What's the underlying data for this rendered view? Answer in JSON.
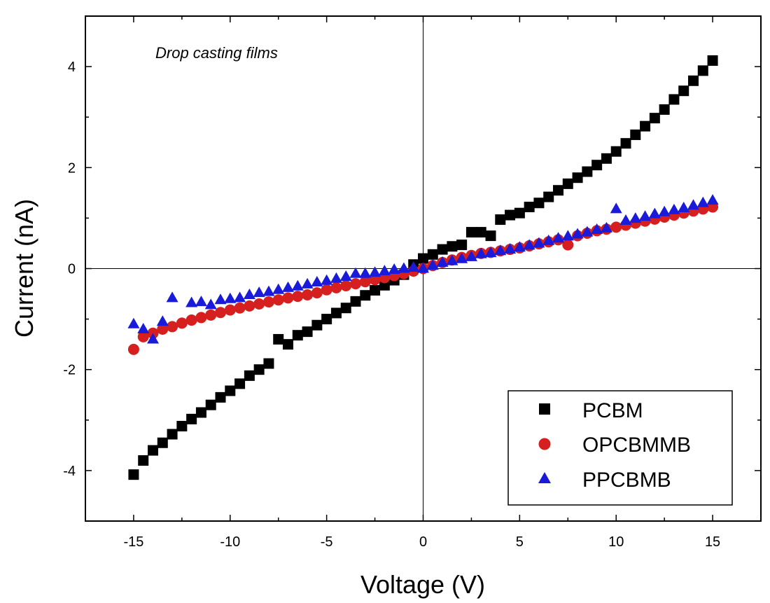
{
  "chart_data": {
    "type": "scatter",
    "title": "",
    "annotation": "Drop casting films",
    "xlabel": "Voltage (V)",
    "ylabel": "Current (nA)",
    "xlim": [
      -17.5,
      17.5
    ],
    "ylim": [
      -5,
      5
    ],
    "xticks": [
      -15,
      -10,
      -5,
      0,
      5,
      10,
      15
    ],
    "yticks": [
      -4,
      -2,
      0,
      2,
      4
    ],
    "xtick_labels": [
      "-15",
      "-10",
      "-5",
      "0",
      "5",
      "10",
      "15"
    ],
    "ytick_labels": [
      "-4",
      "-2",
      "0",
      "2",
      "4"
    ],
    "grid": false,
    "zero_lines": true,
    "legend_position": "bottom-right",
    "series": [
      {
        "name": "PCBM",
        "marker": "square",
        "color": "#000000",
        "x": [
          -15,
          -14.5,
          -14,
          -13.5,
          -13,
          -12.5,
          -12,
          -11.5,
          -11,
          -10.5,
          -10,
          -9.5,
          -9,
          -8.5,
          -8,
          -7.5,
          -7,
          -6.5,
          -6,
          -5.5,
          -5,
          -4.5,
          -4,
          -3.5,
          -3,
          -2.5,
          -2,
          -1.5,
          -1,
          -0.5,
          0,
          0.5,
          1,
          1.5,
          2,
          2.5,
          3,
          3.5,
          4,
          4.5,
          5,
          5.5,
          6,
          6.5,
          7,
          7.5,
          8,
          8.5,
          9,
          9.5,
          10,
          10.5,
          11,
          11.5,
          12,
          12.5,
          13,
          13.5,
          14,
          14.5,
          15
        ],
        "y": [
          -4.08,
          -3.8,
          -3.6,
          -3.45,
          -3.28,
          -3.12,
          -2.98,
          -2.85,
          -2.7,
          -2.55,
          -2.42,
          -2.28,
          -2.12,
          -2.0,
          -1.88,
          -1.4,
          -1.5,
          -1.32,
          -1.25,
          -1.12,
          -1.0,
          -0.88,
          -0.78,
          -0.65,
          -0.53,
          -0.43,
          -0.33,
          -0.23,
          -0.12,
          0.08,
          0.2,
          0.28,
          0.38,
          0.44,
          0.47,
          0.72,
          0.72,
          0.65,
          0.97,
          1.06,
          1.1,
          1.22,
          1.3,
          1.42,
          1.55,
          1.68,
          1.8,
          1.92,
          2.05,
          2.18,
          2.32,
          2.48,
          2.65,
          2.82,
          2.98,
          3.15,
          3.35,
          3.52,
          3.72,
          3.92,
          4.12
        ]
      },
      {
        "name": "OPCBMMB",
        "marker": "circle",
        "color": "#d62020",
        "x": [
          -15,
          -14.5,
          -14,
          -13.5,
          -13,
          -12.5,
          -12,
          -11.5,
          -11,
          -10.5,
          -10,
          -9.5,
          -9,
          -8.5,
          -8,
          -7.5,
          -7,
          -6.5,
          -6,
          -5.5,
          -5,
          -4.5,
          -4,
          -3.5,
          -3,
          -2.5,
          -2,
          -1.5,
          -1,
          -0.5,
          0,
          0.5,
          1,
          1.5,
          2,
          2.5,
          3,
          3.5,
          4,
          4.5,
          5,
          5.5,
          6,
          6.5,
          7,
          7.5,
          8,
          8.5,
          9,
          9.5,
          10,
          10.5,
          11,
          11.5,
          12,
          12.5,
          13,
          13.5,
          14,
          14.5,
          15
        ],
        "y": [
          -1.6,
          -1.35,
          -1.28,
          -1.2,
          -1.15,
          -1.08,
          -1.02,
          -0.97,
          -0.92,
          -0.87,
          -0.82,
          -0.78,
          -0.74,
          -0.7,
          -0.66,
          -0.62,
          -0.58,
          -0.55,
          -0.52,
          -0.48,
          -0.42,
          -0.38,
          -0.34,
          -0.3,
          -0.26,
          -0.22,
          -0.18,
          -0.14,
          -0.1,
          -0.05,
          0.0,
          0.06,
          0.12,
          0.17,
          0.22,
          0.26,
          0.3,
          0.32,
          0.35,
          0.38,
          0.41,
          0.45,
          0.49,
          0.53,
          0.57,
          0.47,
          0.65,
          0.7,
          0.75,
          0.78,
          0.82,
          0.86,
          0.9,
          0.94,
          0.98,
          1.02,
          1.06,
          1.1,
          1.14,
          1.18,
          1.22
        ]
      },
      {
        "name": "PPCBMB",
        "marker": "triangle",
        "color": "#1a1adb",
        "x": [
          -15,
          -14.5,
          -14,
          -13.5,
          -13,
          -12,
          -11.5,
          -11,
          -10.5,
          -10,
          -9.5,
          -9,
          -8.5,
          -8,
          -7.5,
          -7,
          -6.5,
          -6,
          -5.5,
          -5,
          -4.5,
          -4,
          -3.5,
          -3,
          -2.5,
          -2,
          -1.5,
          -1,
          -0.5,
          0,
          0.5,
          1,
          1.5,
          2,
          2.5,
          3,
          3.5,
          4,
          4.5,
          5,
          5.5,
          6,
          6.5,
          7,
          7.5,
          8,
          8.5,
          9,
          9.5,
          10,
          10.5,
          11,
          11.5,
          12,
          12.5,
          13,
          13.5,
          14,
          14.5,
          15
        ],
        "y": [
          -1.1,
          -1.2,
          -1.4,
          -1.05,
          -0.58,
          -0.68,
          -0.66,
          -0.72,
          -0.62,
          -0.6,
          -0.58,
          -0.52,
          -0.48,
          -0.46,
          -0.42,
          -0.38,
          -0.35,
          -0.31,
          -0.27,
          -0.24,
          -0.2,
          -0.16,
          -0.1,
          -0.1,
          -0.08,
          -0.05,
          -0.02,
          0.0,
          0.02,
          0.0,
          0.06,
          0.12,
          0.15,
          0.19,
          0.23,
          0.29,
          0.31,
          0.35,
          0.38,
          0.42,
          0.46,
          0.5,
          0.55,
          0.6,
          0.64,
          0.68,
          0.72,
          0.77,
          0.8,
          1.18,
          0.95,
          0.99,
          1.03,
          1.08,
          1.12,
          1.16,
          1.2,
          1.25,
          1.3,
          1.35
        ]
      }
    ]
  },
  "legend": {
    "entries": [
      "PCBM",
      "OPCBMMB",
      "PPCBMB"
    ]
  }
}
